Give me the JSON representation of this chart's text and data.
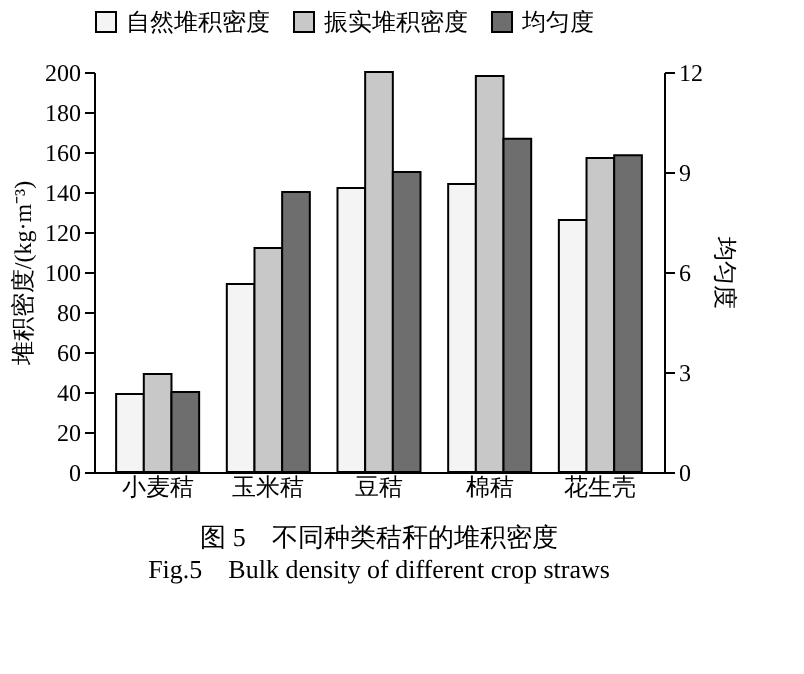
{
  "chart_data": {
    "type": "bar",
    "title": "图 5　不同种类秸秆的堆积密度",
    "subtitle": "Fig.5　Bulk density of different crop straws",
    "ylabel": "堆积密度/(kg·m⁻³)",
    "y2label": "均匀度",
    "categories": [
      "小麦秸",
      "玉米秸",
      "豆秸",
      "棉秸",
      "花生壳"
    ],
    "series": [
      {
        "name": "自然堆积密度",
        "color": "#f4f4f4",
        "values": [
          39,
          94,
          142,
          144,
          126
        ]
      },
      {
        "name": "振实堆积密度",
        "color": "#c8c8c8",
        "values": [
          49,
          112,
          200,
          198,
          157
        ]
      },
      {
        "name": "均匀度",
        "color": "#6e6e6e",
        "values": [
          2.4,
          8.4,
          9.0,
          10.0,
          9.5
        ],
        "axis": "y2"
      }
    ],
    "ylim": [
      0,
      200
    ],
    "yticks": [
      0,
      20,
      40,
      60,
      80,
      100,
      120,
      140,
      160,
      180,
      200
    ],
    "y2lim": [
      0,
      12
    ],
    "y2ticks": [
      0,
      3,
      6,
      9,
      12
    ],
    "legend": "top",
    "grid": false
  }
}
